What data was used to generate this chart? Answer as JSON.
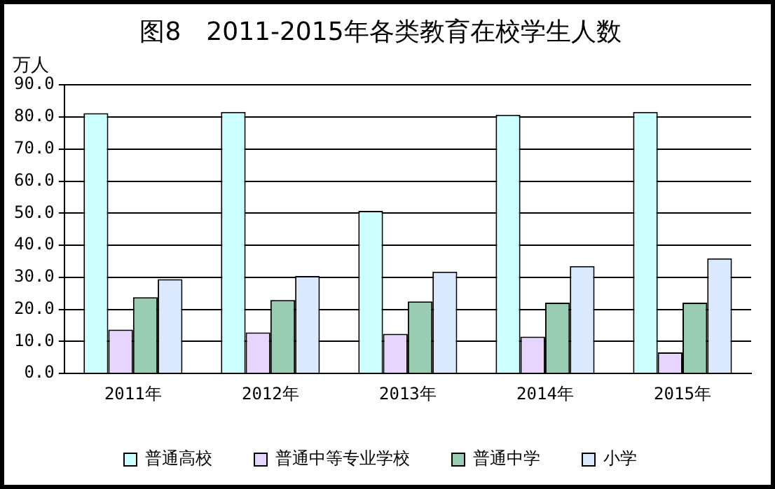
{
  "chart_data": {
    "type": "bar",
    "title": "图8　2011-2015年各类教育在校学生人数",
    "ylabel": "万人",
    "categories": [
      "2011年",
      "2012年",
      "2013年",
      "2014年",
      "2015年"
    ],
    "series": [
      {
        "name": "普通高校",
        "color": "#ccffff",
        "values": [
          81.2,
          81.6,
          50.7,
          80.7,
          81.6
        ]
      },
      {
        "name": "普通中等专业学校",
        "color": "#e8d5ff",
        "values": [
          13.7,
          12.8,
          12.4,
          11.5,
          6.6
        ]
      },
      {
        "name": "普通中学",
        "color": "#99ccb2",
        "values": [
          23.8,
          22.9,
          22.5,
          22.1,
          22.1
        ]
      },
      {
        "name": "小学",
        "color": "#dbe9ff",
        "values": [
          29.4,
          30.4,
          31.8,
          33.5,
          35.9
        ]
      }
    ],
    "ylim": [
      0,
      90
    ],
    "yticks": [
      {
        "value": 0,
        "label": "0.0"
      },
      {
        "value": 10,
        "label": "10.0"
      },
      {
        "value": 20,
        "label": "20.0"
      },
      {
        "value": 30,
        "label": "30.0"
      },
      {
        "value": 40,
        "label": "40.0"
      },
      {
        "value": 50,
        "label": "50.0"
      },
      {
        "value": 60,
        "label": "60.0"
      },
      {
        "value": 70,
        "label": "70.0"
      },
      {
        "value": 80,
        "label": "80.0"
      },
      {
        "value": 90,
        "label": "90.0"
      }
    ],
    "grid": "y",
    "legend": "bottom"
  }
}
